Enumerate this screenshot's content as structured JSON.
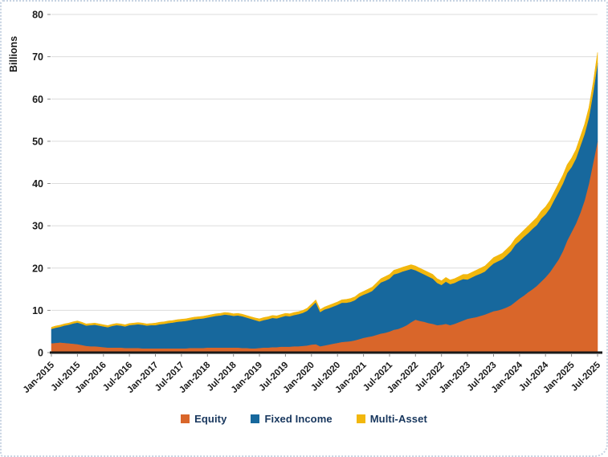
{
  "chart_data": {
    "type": "area",
    "stacked": true,
    "title": "",
    "ylabel": "Billions",
    "xlabel": "",
    "ylim": [
      0,
      80
    ],
    "y_ticks": [
      0,
      10,
      20,
      30,
      40,
      50,
      60,
      70,
      80
    ],
    "x_unit": "month",
    "x_start": "Jan-2015",
    "x_end": "Jul-2025",
    "tick_every": 6,
    "tick_labels": [
      "Jan-2015",
      "Jul-2015",
      "Jan-2016",
      "Jul-2016",
      "Jan-2017",
      "Jul-2017",
      "Jan-2018",
      "Jul-2018",
      "Jan-2019",
      "Jul-2019",
      "Jan-2020",
      "Jul-2020",
      "Jan-2021",
      "Jul-2021",
      "Jan-2022",
      "Jul-2022",
      "Jan-2023",
      "Jul-2023",
      "Jan-2024",
      "Jul-2024",
      "Jan-2025",
      "Jul-2025"
    ],
    "legend_position": "bottom",
    "grid": true,
    "series": [
      {
        "name": "Equity",
        "color": "#d9662a",
        "values": [
          2.2,
          2.3,
          2.4,
          2.3,
          2.2,
          2.1,
          2.0,
          1.8,
          1.6,
          1.5,
          1.5,
          1.4,
          1.3,
          1.2,
          1.2,
          1.2,
          1.2,
          1.1,
          1.1,
          1.1,
          1.1,
          1.0,
          1.0,
          1.0,
          1.0,
          1.0,
          1.0,
          1.0,
          1.0,
          1.0,
          1.0,
          1.0,
          1.1,
          1.1,
          1.1,
          1.1,
          1.2,
          1.2,
          1.2,
          1.2,
          1.2,
          1.2,
          1.2,
          1.2,
          1.1,
          1.1,
          1.0,
          1.0,
          1.1,
          1.2,
          1.2,
          1.3,
          1.3,
          1.4,
          1.4,
          1.4,
          1.5,
          1.5,
          1.6,
          1.7,
          1.9,
          2.0,
          1.5,
          1.7,
          1.9,
          2.1,
          2.3,
          2.5,
          2.6,
          2.7,
          2.9,
          3.2,
          3.5,
          3.7,
          3.9,
          4.2,
          4.5,
          4.7,
          5.0,
          5.4,
          5.6,
          6.0,
          6.5,
          7.2,
          7.8,
          7.5,
          7.3,
          7.0,
          6.8,
          6.5,
          6.6,
          6.8,
          6.5,
          6.8,
          7.2,
          7.6,
          8.0,
          8.2,
          8.4,
          8.7,
          9.0,
          9.4,
          9.8,
          10.0,
          10.3,
          10.7,
          11.2,
          12.0,
          12.8,
          13.5,
          14.3,
          15.0,
          15.8,
          16.8,
          17.8,
          19.0,
          20.5,
          22.0,
          24.0,
          26.5,
          28.5,
          30.5,
          33.0,
          36.0,
          40.0,
          45.0,
          50.0
        ]
      },
      {
        "name": "Fixed Income",
        "color": "#17689d",
        "values": [
          3.4,
          3.6,
          3.7,
          4.1,
          4.4,
          4.8,
          5.1,
          5.0,
          4.8,
          5.0,
          5.1,
          5.0,
          4.9,
          4.8,
          5.1,
          5.3,
          5.2,
          5.1,
          5.4,
          5.5,
          5.6,
          5.6,
          5.4,
          5.5,
          5.5,
          5.7,
          5.8,
          6.0,
          6.1,
          6.3,
          6.4,
          6.5,
          6.6,
          6.8,
          6.9,
          7.0,
          7.1,
          7.3,
          7.5,
          7.6,
          7.8,
          7.7,
          7.5,
          7.6,
          7.5,
          7.2,
          7.0,
          6.7,
          6.3,
          6.5,
          6.7,
          6.9,
          6.8,
          7.0,
          7.3,
          7.2,
          7.4,
          7.6,
          7.8,
          8.2,
          9.0,
          9.9,
          8.1,
          8.5,
          8.6,
          8.8,
          9.0,
          9.3,
          9.2,
          9.3,
          9.5,
          10.0,
          10.2,
          10.4,
          10.7,
          11.4,
          12.1,
          12.3,
          12.5,
          13.1,
          13.2,
          13.2,
          13.0,
          12.6,
          11.7,
          11.5,
          11.2,
          11.0,
          10.7,
          10.0,
          9.4,
          10.0,
          9.7,
          9.7,
          9.8,
          9.8,
          9.3,
          9.6,
          9.9,
          10.0,
          10.2,
          10.8,
          11.3,
          11.6,
          11.8,
          12.3,
          12.8,
          13.5,
          13.6,
          13.9,
          14.0,
          14.3,
          14.4,
          14.9,
          14.9,
          15.1,
          15.6,
          16.0,
          16.0,
          16.0,
          15.4,
          15.4,
          15.8,
          15.7,
          15.6,
          16.6,
          18.5
        ]
      },
      {
        "name": "Multi-Asset",
        "color": "#f2b70d",
        "values": [
          0.4,
          0.4,
          0.4,
          0.4,
          0.4,
          0.4,
          0.4,
          0.4,
          0.4,
          0.4,
          0.4,
          0.4,
          0.4,
          0.4,
          0.4,
          0.4,
          0.4,
          0.4,
          0.4,
          0.4,
          0.4,
          0.4,
          0.4,
          0.4,
          0.5,
          0.5,
          0.5,
          0.5,
          0.5,
          0.5,
          0.5,
          0.5,
          0.5,
          0.5,
          0.5,
          0.5,
          0.5,
          0.5,
          0.5,
          0.5,
          0.5,
          0.5,
          0.5,
          0.5,
          0.5,
          0.5,
          0.5,
          0.5,
          0.6,
          0.6,
          0.6,
          0.6,
          0.6,
          0.6,
          0.6,
          0.6,
          0.6,
          0.6,
          0.6,
          0.6,
          0.6,
          0.6,
          0.6,
          0.6,
          0.7,
          0.7,
          0.7,
          0.7,
          0.8,
          0.8,
          0.8,
          0.8,
          0.8,
          0.9,
          0.9,
          0.9,
          0.9,
          1.0,
          1.0,
          1.0,
          1.0,
          1.0,
          1.0,
          1.0,
          1.0,
          1.0,
          1.0,
          1.0,
          1.0,
          1.0,
          1.0,
          1.0,
          1.0,
          1.0,
          1.0,
          1.1,
          1.2,
          1.2,
          1.2,
          1.3,
          1.3,
          1.3,
          1.4,
          1.4,
          1.4,
          1.5,
          1.5,
          1.5,
          1.6,
          1.6,
          1.7,
          1.7,
          1.8,
          1.8,
          1.8,
          1.9,
          1.9,
          2.0,
          2.0,
          2.0,
          2.1,
          2.1,
          2.2,
          2.3,
          2.4,
          2.4,
          2.5
        ]
      }
    ]
  },
  "legend": {
    "items": [
      "Equity",
      "Fixed Income",
      "Multi-Asset"
    ]
  }
}
